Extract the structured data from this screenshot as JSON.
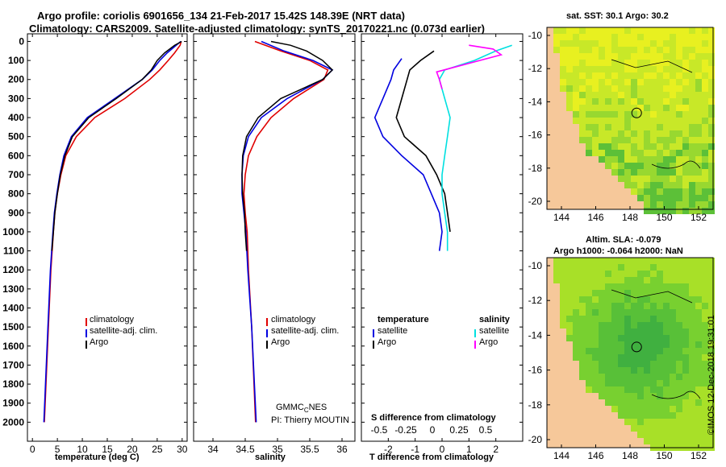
{
  "header": {
    "line1": "Argo profile: coriolis 6901656_134 21-Feb-2017 15.42S 148.39E (NRT data)",
    "line2": "Climatology: CARS2009. Satellite-adjusted climatology: synTS_20170221.nc (0.073d earlier)"
  },
  "colors": {
    "climatology": "#e00000",
    "satellite": "#0000e0",
    "argo": "#000000",
    "sat_salinity": "#00e0e0",
    "argo_salinity": "#ff00ff",
    "land": "#f6c89a"
  },
  "chart_data": [
    {
      "type": "line",
      "id": "temperature",
      "xlabel": "temperature (deg C)",
      "ylabel": "",
      "xlim": [
        -1,
        31
      ],
      "ylim": [
        2100,
        0
      ],
      "xticks": [
        "0",
        "5",
        "10",
        "15",
        "20",
        "25",
        "30"
      ],
      "yticks": [
        "0",
        "100",
        "200",
        "300",
        "400",
        "500",
        "600",
        "700",
        "800",
        "900",
        "1000",
        "1100",
        "1200",
        "1300",
        "1400",
        "1500",
        "1600",
        "1700",
        "1800",
        "1900",
        "2000"
      ],
      "legend": [
        "climatology",
        "satellite-adj. clim.",
        "Argo"
      ],
      "series": [
        {
          "name": "climatology",
          "depth": [
            0,
            20,
            60,
            100,
            150,
            200,
            300,
            400,
            500,
            600,
            700,
            800,
            900,
            1000,
            1200,
            1500,
            2000
          ],
          "values": [
            29.8,
            29.6,
            28.5,
            27.2,
            25.5,
            23.5,
            18.5,
            12.5,
            8.8,
            6.7,
            5.7,
            5.0,
            4.5,
            4.2,
            3.7,
            3.2,
            2.4
          ]
        },
        {
          "name": "satellite-adj. clim.",
          "depth": [
            0,
            20,
            60,
            100,
            150,
            200,
            300,
            400,
            500,
            600,
            700,
            800,
            900,
            1000,
            1200,
            1500,
            2000
          ],
          "values": [
            29.7,
            28.8,
            27.0,
            25.5,
            24.0,
            22.0,
            16.5,
            11.0,
            7.8,
            6.3,
            5.5,
            4.9,
            4.4,
            4.1,
            3.6,
            3.1,
            2.3
          ]
        },
        {
          "name": "Argo",
          "depth": [
            0,
            20,
            60,
            100,
            150,
            200,
            300,
            400,
            500,
            600,
            700,
            800,
            900,
            1000,
            1100
          ],
          "values": [
            29.9,
            28.5,
            26.5,
            25.0,
            23.8,
            22.0,
            16.8,
            11.3,
            8.0,
            6.5,
            5.6,
            5.0,
            4.5,
            4.2,
            3.9
          ]
        }
      ]
    },
    {
      "type": "line",
      "id": "salinity",
      "xlabel": "salinity",
      "ylabel": "",
      "xlim": [
        33.7,
        36.2
      ],
      "ylim": [
        2100,
        0
      ],
      "xticks": [
        "34",
        "34.5",
        "35",
        "35.5",
        "36"
      ],
      "legend": [
        "climatology",
        "satellite-adj. clim.",
        "Argo"
      ],
      "annotations": [
        "GMMC",
        "C",
        "NES",
        "PI: Thierry MOUTIN"
      ],
      "series": [
        {
          "name": "climatology",
          "depth": [
            0,
            50,
            100,
            150,
            200,
            300,
            400,
            500,
            600,
            700,
            800,
            900,
            1000,
            1200,
            1500,
            2000
          ],
          "values": [
            34.65,
            35.05,
            35.5,
            35.78,
            35.72,
            35.25,
            34.9,
            34.68,
            34.55,
            34.5,
            34.48,
            34.5,
            34.53,
            34.55,
            34.6,
            34.66
          ]
        },
        {
          "name": "satellite-adj. clim.",
          "depth": [
            0,
            50,
            100,
            150,
            200,
            300,
            400,
            500,
            600,
            700,
            800,
            900,
            1000,
            1200,
            1500,
            2000
          ],
          "values": [
            34.75,
            35.1,
            35.55,
            35.85,
            35.7,
            35.15,
            34.75,
            34.55,
            34.47,
            34.45,
            34.45,
            34.48,
            34.51,
            34.54,
            34.6,
            34.67
          ]
        },
        {
          "name": "Argo",
          "depth": [
            0,
            20,
            50,
            100,
            150,
            200,
            300,
            400,
            500,
            600,
            700,
            800,
            900,
            1000,
            1100
          ],
          "values": [
            34.9,
            35.2,
            35.45,
            35.7,
            35.85,
            35.7,
            35.05,
            34.7,
            34.52,
            34.46,
            34.45,
            34.46,
            34.49,
            34.5,
            34.52
          ]
        }
      ]
    },
    {
      "type": "line",
      "id": "difference",
      "xlabel": "T difference from climatology",
      "xlabel2": "S difference from climatology",
      "xlim": [
        -3,
        3
      ],
      "ylim": [
        2100,
        0
      ],
      "xticks": [
        "-2",
        "-1",
        "0",
        "1",
        "2"
      ],
      "xticks2": [
        "-0.5",
        "-0.25",
        "0",
        "0.25",
        "0.5"
      ],
      "legend_left_title": "temperature",
      "legend_right_title": "salinity",
      "legend": [
        "satellite",
        "Argo",
        "satellite",
        "Argo"
      ],
      "series": [
        {
          "name": "T satellite",
          "depth": [
            90,
            150,
            200,
            300,
            400,
            500,
            600,
            700,
            800,
            900,
            1000,
            1100
          ],
          "values": [
            -1.5,
            -1.8,
            -1.9,
            -2.2,
            -2.5,
            -2.2,
            -1.5,
            -0.7,
            -0.4,
            -0.1,
            0.0,
            -0.1
          ]
        },
        {
          "name": "T Argo",
          "depth": [
            50,
            100,
            150,
            200,
            300,
            400,
            500,
            600,
            700,
            800,
            900,
            1000
          ],
          "values": [
            -0.3,
            -0.8,
            -1.2,
            -1.3,
            -1.5,
            -1.7,
            -1.4,
            -0.6,
            -0.2,
            0.1,
            0.2,
            0.3
          ]
        },
        {
          "name": "S satellite",
          "depth": [
            20,
            50,
            100,
            150,
            200,
            300,
            400,
            500,
            600,
            700,
            800,
            900,
            1000,
            1100
          ],
          "values": [
            2.6,
            2.0,
            1.2,
            0.1,
            -0.1,
            0.1,
            0.3,
            0.2,
            0.1,
            0.0,
            0.0,
            0.1,
            0.2,
            0.2
          ]
        },
        {
          "name": "S Argo",
          "depth": [
            20,
            40,
            70,
            100,
            130,
            160,
            200,
            250
          ],
          "values": [
            1.0,
            1.9,
            2.2,
            1.4,
            0.6,
            -0.2,
            -0.1,
            0.0
          ]
        }
      ]
    },
    {
      "type": "heatmap",
      "id": "map-sst",
      "title": "sat. SST: 30.1 Argo: 30.2",
      "xticks": [
        "144",
        "146",
        "148",
        "150",
        "152"
      ],
      "yticks": [
        "-10",
        "-12",
        "-14",
        "-16",
        "-18",
        "-20"
      ]
    },
    {
      "type": "heatmap",
      "id": "map-sla",
      "title": "Altim. SLA: -0.079",
      "subtitle": "Argo h1000: -0.064 h2000: NaN",
      "xticks": [
        "144",
        "146",
        "148",
        "150",
        "152"
      ],
      "yticks": [
        "-10",
        "-12",
        "-14",
        "-16",
        "-18",
        "-20"
      ]
    }
  ],
  "credit": "©IMOS 12-Dec-2018 19:31:01"
}
